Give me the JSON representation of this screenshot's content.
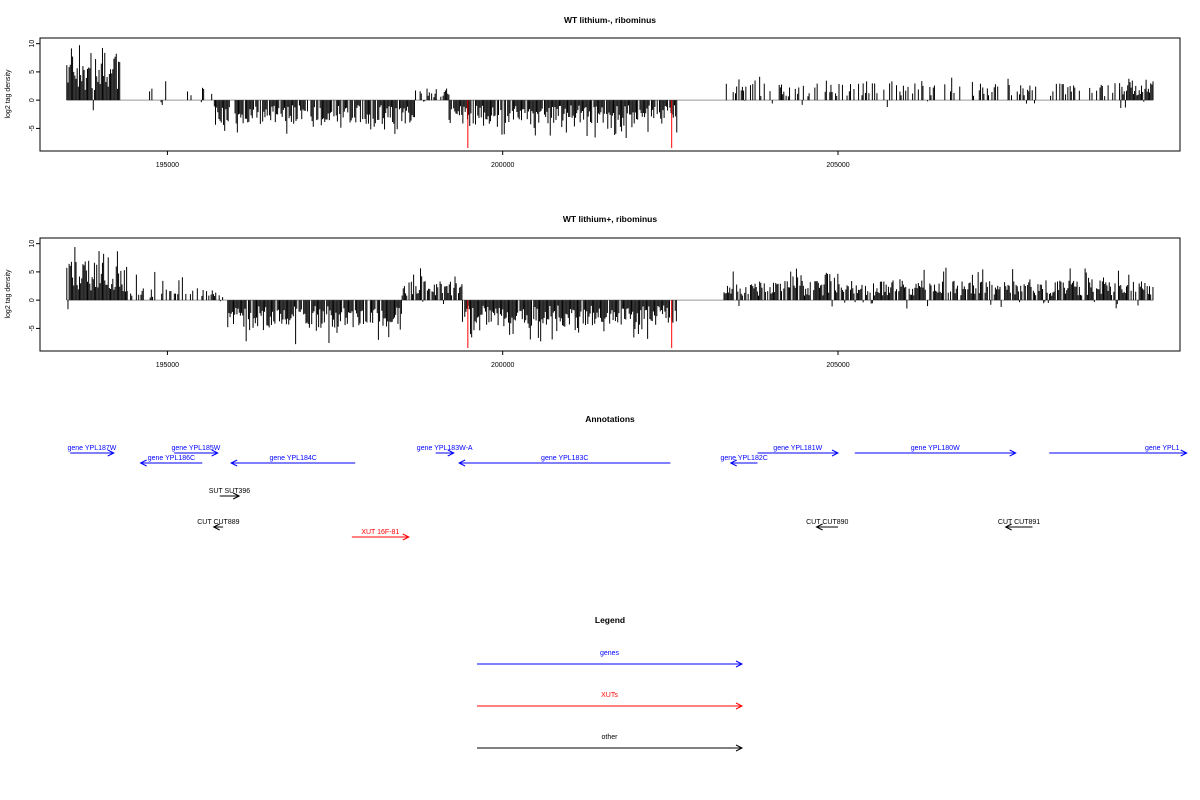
{
  "panels": [
    {
      "title": "WT lithium-, ribominus",
      "ylabel": "log2 tag density",
      "x_range": [
        193100,
        210100
      ],
      "y_range": [
        -9,
        11
      ],
      "y_ticks": [
        "10",
        "5",
        "0",
        "-5"
      ],
      "x_ticks": [
        "195000",
        "200000",
        "205000"
      ],
      "marker_lines_x": [
        199480,
        202520
      ],
      "chart_data": {
        "type": "bar",
        "x_start": 193500,
        "x_end": 209700,
        "segments": [
          {
            "from": 193500,
            "to": 194300,
            "level": 5.5,
            "peak": 9.8,
            "sign": 1,
            "density": 1.0
          },
          {
            "from": 194300,
            "to": 194700,
            "level": 0.0,
            "peak": 0.0,
            "sign": 0,
            "density": 0.05
          },
          {
            "from": 194700,
            "to": 195700,
            "level": 1.5,
            "peak": 3.5,
            "sign": 1,
            "density": 0.15
          },
          {
            "from": 195700,
            "to": 198700,
            "level": -3.0,
            "peak": -6.0,
            "sign": -1,
            "density": 0.85
          },
          {
            "from": 198700,
            "to": 199200,
            "level": 1.5,
            "peak": 4.8,
            "sign": 1,
            "density": 0.6
          },
          {
            "from": 199200,
            "to": 202600,
            "level": -3.0,
            "peak": -6.8,
            "sign": -1,
            "density": 0.9
          },
          {
            "from": 202600,
            "to": 203300,
            "level": 0.0,
            "peak": 0.0,
            "sign": 0,
            "density": 0.05
          },
          {
            "from": 203300,
            "to": 209200,
            "level": 2.2,
            "peak": 4.2,
            "sign": 1,
            "density": 0.35
          },
          {
            "from": 209200,
            "to": 209700,
            "level": 2.5,
            "peak": 3.8,
            "sign": 1,
            "density": 1.0
          }
        ]
      }
    },
    {
      "title": "WT lithium+, ribominus",
      "ylabel": "log2 tag density",
      "x_range": [
        193100,
        210100
      ],
      "y_range": [
        -9,
        11
      ],
      "y_ticks": [
        "10",
        "5",
        "0",
        "-5"
      ],
      "x_ticks": [
        "195000",
        "200000",
        "205000"
      ],
      "marker_lines_x": [
        199480,
        202520
      ],
      "chart_data": {
        "type": "bar",
        "x_start": 193500,
        "x_end": 209700,
        "segments": [
          {
            "from": 193500,
            "to": 194400,
            "level": 5.0,
            "peak": 9.5,
            "sign": 1,
            "density": 1.0
          },
          {
            "from": 194400,
            "to": 195900,
            "level": 1.5,
            "peak": 5.0,
            "sign": 1,
            "density": 0.4
          },
          {
            "from": 195900,
            "to": 198500,
            "level": -3.5,
            "peak": -7.8,
            "sign": -1,
            "density": 0.9
          },
          {
            "from": 198500,
            "to": 199400,
            "level": 2.5,
            "peak": 6.0,
            "sign": 1,
            "density": 0.9
          },
          {
            "from": 199400,
            "to": 202600,
            "level": -3.2,
            "peak": -7.5,
            "sign": -1,
            "density": 0.95
          },
          {
            "from": 202600,
            "to": 203300,
            "level": 0.0,
            "peak": 0.0,
            "sign": 0,
            "density": 0.05
          },
          {
            "from": 203300,
            "to": 209700,
            "level": 2.5,
            "peak": 5.8,
            "sign": 1,
            "density": 0.85
          }
        ]
      }
    }
  ],
  "annotations": {
    "title": "Annotations",
    "items": [
      {
        "label": "gene YPL187W",
        "from": 193550,
        "to": 194200,
        "dir": "right",
        "color": "#0000ff",
        "row": 0
      },
      {
        "label": "gene YPL185W",
        "from": 195100,
        "to": 195750,
        "dir": "right",
        "color": "#0000ff",
        "row": 0
      },
      {
        "label": "gene YPL186C",
        "from": 194600,
        "to": 195520,
        "dir": "left",
        "color": "#0000ff",
        "row": 1
      },
      {
        "label": "gene YPL184C",
        "from": 195950,
        "to": 197800,
        "dir": "left",
        "color": "#0000ff",
        "row": 1
      },
      {
        "label": "gene YPL183W-A",
        "from": 199000,
        "to": 199270,
        "dir": "right",
        "color": "#0000ff",
        "row": 0
      },
      {
        "label": "gene YPL183C",
        "from": 199350,
        "to": 202500,
        "dir": "left",
        "color": "#0000ff",
        "row": 1
      },
      {
        "label": "gene YPL182C",
        "from": 203400,
        "to": 203800,
        "dir": "left",
        "color": "#0000ff",
        "row": 1
      },
      {
        "label": "gene YPL181W",
        "from": 203800,
        "to": 205000,
        "dir": "right",
        "color": "#0000ff",
        "row": 0
      },
      {
        "label": "gene YPL180W",
        "from": 205250,
        "to": 207650,
        "dir": "right",
        "color": "#0000ff",
        "row": 0
      },
      {
        "label": "gene YPL1",
        "from": 208150,
        "to": 210200,
        "dir": "right",
        "color": "#0000ff",
        "row": 0
      },
      {
        "label": "SUT SUT396",
        "from": 195780,
        "to": 196070,
        "dir": "right",
        "color": "#000000",
        "row": 2
      },
      {
        "label": "CUT CUT889",
        "from": 195690,
        "to": 195830,
        "dir": "left",
        "color": "#000000",
        "row": 3
      },
      {
        "label": "CUT CUT890",
        "from": 204680,
        "to": 205000,
        "dir": "left",
        "color": "#000000",
        "row": 3
      },
      {
        "label": "CUT CUT891",
        "from": 207500,
        "to": 207900,
        "dir": "left",
        "color": "#000000",
        "row": 3
      },
      {
        "label": "XUT 16F-81",
        "from": 197750,
        "to": 198600,
        "dir": "right",
        "color": "#ff0000",
        "row": 4
      }
    ]
  },
  "legend": {
    "title": "Legend",
    "items": [
      {
        "label": "genes",
        "color": "#0000ff"
      },
      {
        "label": "XUTs",
        "color": "#ff0000"
      },
      {
        "label": "other",
        "color": "#000000"
      }
    ]
  }
}
